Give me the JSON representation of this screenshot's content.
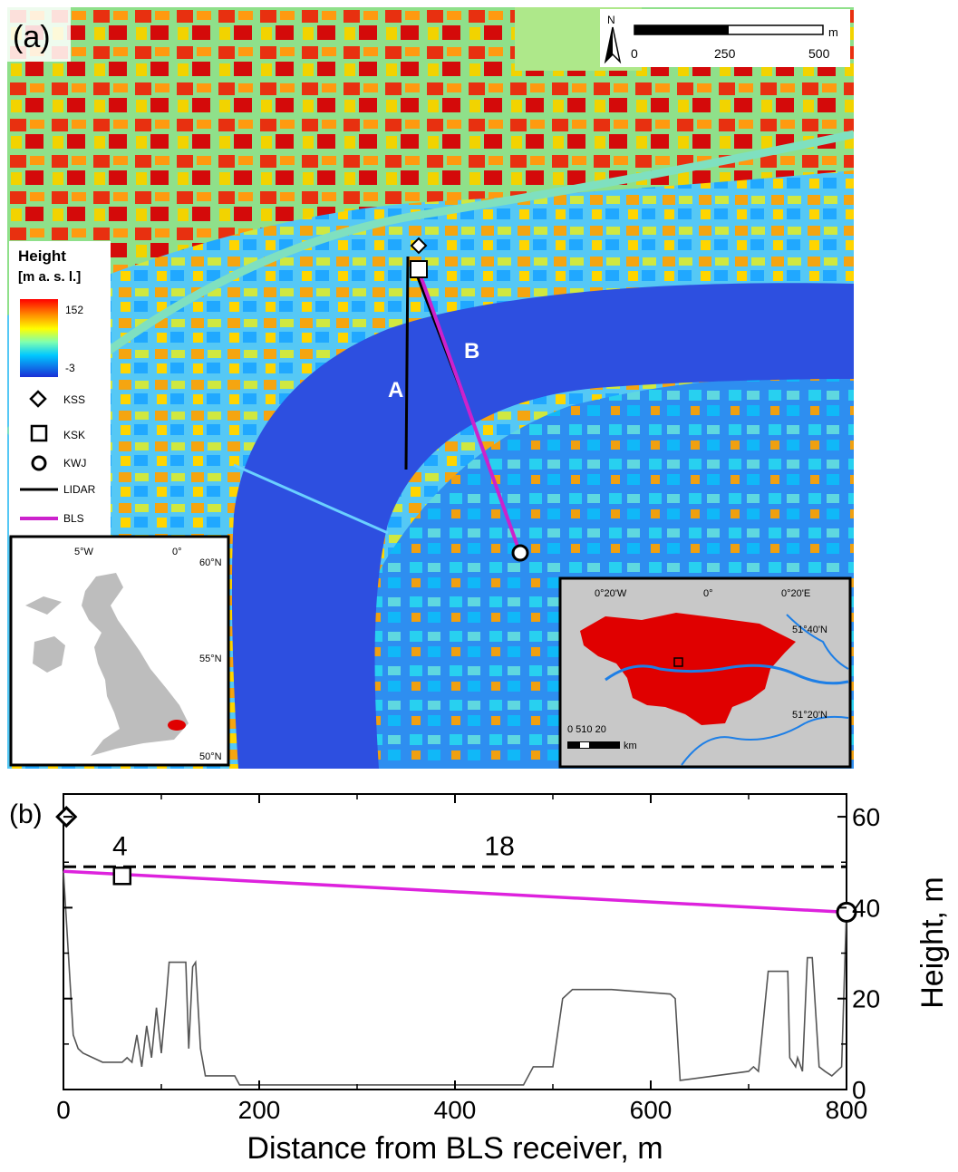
{
  "panel_a": {
    "label": "(a)",
    "north_label": "N",
    "scale_bar": {
      "unit": "m",
      "ticks": [
        "0",
        "250",
        "500"
      ]
    },
    "legend": {
      "title_line1": "Height",
      "title_line2": "[m a. s. l.]",
      "max_label": "152",
      "min_label": "-3",
      "items": [
        {
          "symbol": "diamond",
          "label": "KSS"
        },
        {
          "symbol": "square",
          "label": "KSK"
        },
        {
          "symbol": "circle",
          "label": "KWJ"
        },
        {
          "symbol": "line",
          "color": "#000000",
          "label": "LIDAR"
        },
        {
          "symbol": "line",
          "color": "#cc22cc",
          "label": "BLS"
        }
      ]
    },
    "path_labels": {
      "a": "A",
      "b": "B"
    },
    "uk_inset": {
      "lon_labels": [
        "5°W",
        "0°"
      ],
      "lat_labels": [
        "60°N",
        "55°N",
        "50°N"
      ],
      "land_color": "#bdbdbd",
      "highlight_color": "#e00000"
    },
    "london_inset": {
      "lon_labels": [
        "0°20'W",
        "0°",
        "0°20'E"
      ],
      "lat_labels": [
        "51°40'N",
        "51°20'N"
      ],
      "scale_numbers": "0 510 20",
      "scale_unit": "km",
      "region_color": "#e00000",
      "river_color": "#1e7fe6"
    }
  },
  "chart_data": {
    "type": "line",
    "panel_label": "(b)",
    "xlabel": "Distance from BLS receiver, m",
    "ylabel": "Height, m",
    "xlim": [
      0,
      800
    ],
    "ylim": [
      0,
      65
    ],
    "x_ticks": [
      0,
      200,
      400,
      600,
      800
    ],
    "y_ticks": [
      0,
      20,
      40,
      60
    ],
    "lidar_height": 49,
    "segment_labels": [
      "4",
      "18"
    ],
    "bls_path": {
      "x": [
        0,
        800
      ],
      "y": [
        48,
        39
      ],
      "color": "#dd22dd"
    },
    "markers": [
      {
        "symbol": "diamond",
        "x": 3,
        "y": 60
      },
      {
        "symbol": "square",
        "x": 60,
        "y": 47
      },
      {
        "symbol": "circle",
        "x": 800,
        "y": 39
      }
    ],
    "terrain": {
      "x": [
        0,
        5,
        10,
        15,
        20,
        30,
        40,
        50,
        60,
        65,
        70,
        75,
        80,
        85,
        90,
        95,
        100,
        105,
        108,
        112,
        125,
        128,
        132,
        135,
        140,
        145,
        150,
        175,
        180,
        190,
        300,
        400,
        470,
        480,
        500,
        510,
        520,
        560,
        620,
        625,
        630,
        700,
        705,
        710,
        720,
        740,
        742,
        748,
        750,
        755,
        760,
        765,
        772,
        778,
        785,
        795,
        800
      ],
      "y": [
        48,
        30,
        12,
        9,
        8,
        7,
        6,
        6,
        6,
        7,
        6,
        12,
        5,
        14,
        7,
        18,
        8,
        20,
        28,
        28,
        28,
        9,
        27,
        28,
        9,
        3,
        3,
        3,
        1,
        1,
        1,
        1,
        1,
        5,
        5,
        20,
        22,
        22,
        21,
        20,
        2,
        4,
        5,
        4,
        26,
        26,
        7,
        5,
        7,
        4,
        29,
        29,
        5,
        4,
        3,
        5,
        40
      ]
    }
  }
}
